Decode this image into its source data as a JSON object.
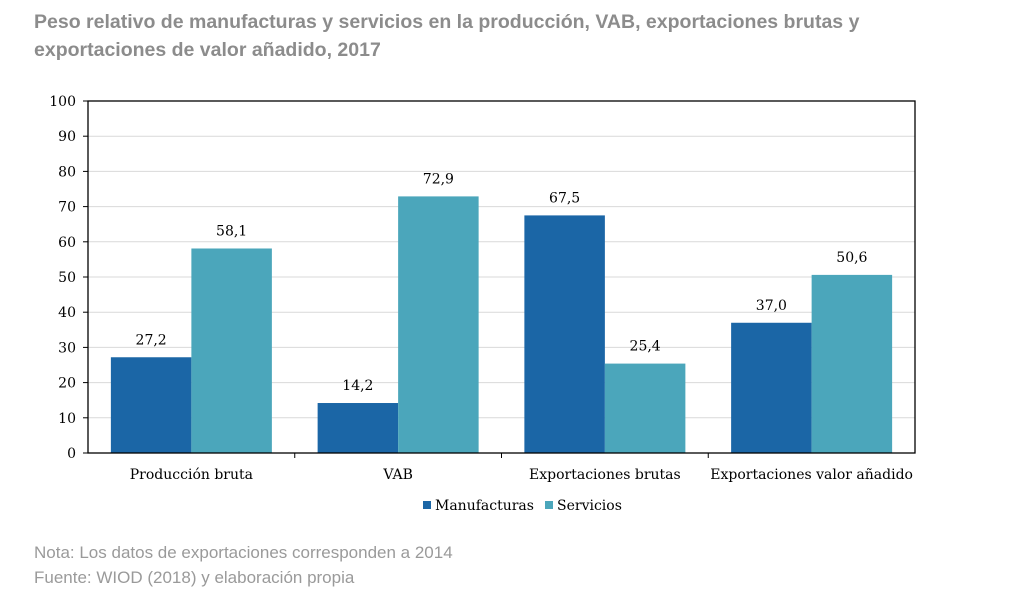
{
  "title": "Peso relativo de manufacturas y servicios en la producción, VAB, exportaciones brutas y exportaciones de valor añadido, 2017",
  "notes": {
    "nota": "Nota: Los datos de exportaciones corresponden a 2014",
    "fuente": "Fuente: WIOD (2018) y elaboración propia"
  },
  "colors": {
    "manufacturas": "#1b66a6",
    "servicios": "#4ba6bb",
    "title": "#8c8c8c",
    "notes": "#9a9a9a"
  },
  "chart_data": {
    "type": "bar",
    "categories": [
      "Producción bruta",
      "VAB",
      "Exportaciones brutas",
      "Exportaciones valor añadido"
    ],
    "series": [
      {
        "name": "Manufacturas",
        "values": [
          27.2,
          14.2,
          67.5,
          37.0
        ],
        "labels": [
          "27,2",
          "14,2",
          "67,5",
          "37,0"
        ]
      },
      {
        "name": "Servicios",
        "values": [
          58.1,
          72.9,
          25.4,
          50.6
        ],
        "labels": [
          "58,1",
          "72,9",
          "25,4",
          "50,6"
        ]
      }
    ],
    "ylim": [
      0,
      100
    ],
    "yticks": [
      0,
      10,
      20,
      30,
      40,
      50,
      60,
      70,
      80,
      90,
      100
    ],
    "grid": true,
    "legend": "bottom-center",
    "xlabel": "",
    "ylabel": ""
  }
}
